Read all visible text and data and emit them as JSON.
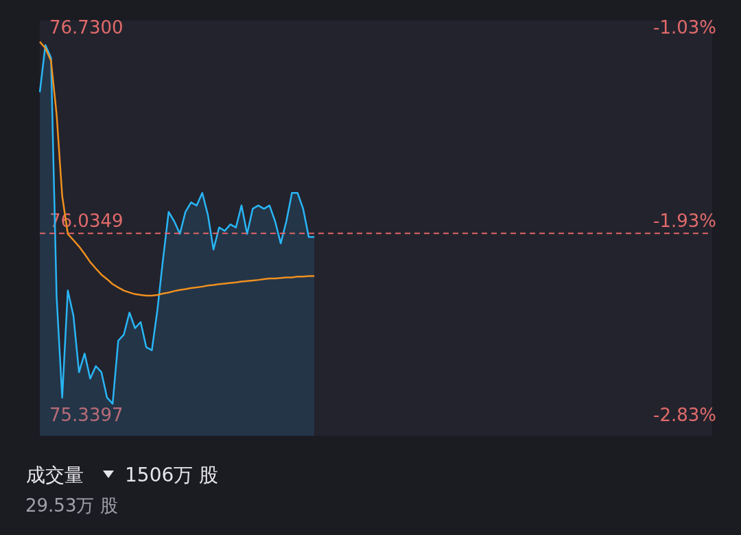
{
  "chart_data": {
    "type": "area",
    "categories": [
      null,
      null,
      null,
      null,
      null,
      null,
      null,
      null,
      null,
      null,
      null,
      null,
      null,
      null,
      null,
      null,
      null,
      null,
      null,
      null,
      null,
      null,
      null,
      null,
      null,
      null,
      null,
      null,
      null,
      null,
      null,
      null,
      null,
      null,
      null,
      null,
      null,
      null,
      null,
      null,
      null,
      null,
      null,
      null,
      null,
      null,
      null,
      null,
      null,
      null,
      null,
      null,
      null,
      null,
      null,
      null,
      null,
      null,
      null,
      null,
      null,
      null,
      null,
      null,
      null,
      null,
      null,
      null,
      null,
      null,
      null,
      null,
      null,
      null,
      null,
      null,
      null,
      null,
      null,
      null,
      null,
      null,
      null,
      null,
      null,
      null,
      null,
      null,
      null,
      null,
      null,
      null,
      null,
      null,
      null,
      null,
      null,
      null,
      null,
      null,
      null,
      null,
      null,
      null,
      null,
      null,
      null,
      null,
      null,
      null,
      null,
      null,
      null,
      null,
      null,
      null,
      null,
      null,
      null,
      null,
      null
    ],
    "series": [
      {
        "type": "area",
        "color": "#29b6f6",
        "values": [
          76.502,
          76.671,
          76.626,
          75.769,
          75.407,
          75.791,
          75.701,
          75.498,
          75.565,
          75.475,
          75.52,
          75.498,
          75.407,
          75.385,
          75.611,
          75.633,
          75.712,
          75.656,
          75.678,
          75.588,
          75.577,
          75.723,
          75.904,
          76.073,
          76.039,
          75.994,
          76.073,
          76.107,
          76.096,
          76.141,
          76.062,
          75.938,
          76.017,
          76.005,
          76.028,
          76.017,
          76.096,
          75.994,
          76.084,
          76.096,
          76.084,
          76.096,
          76.039,
          75.96,
          76.039,
          76.141,
          76.141,
          76.084,
          75.983,
          75.983,
          null,
          null,
          null,
          null,
          null,
          null,
          null,
          null,
          null,
          null,
          null,
          null,
          null,
          null,
          null,
          null,
          null,
          null,
          null,
          null,
          null,
          null,
          null,
          null,
          null,
          null,
          null,
          null,
          null,
          null,
          null,
          null,
          null,
          null,
          null,
          null,
          null,
          null,
          null,
          null,
          null,
          null,
          null,
          null,
          null,
          null,
          null,
          null,
          null,
          null,
          null,
          null,
          null,
          null,
          null,
          null,
          null,
          null,
          null,
          null,
          null,
          null,
          null,
          null,
          null,
          null,
          null,
          null,
          null,
          null,
          null
        ]
      },
      {
        "type": "line",
        "color": "#f0901e",
        "values": [
          76.683,
          76.66,
          76.615,
          76.423,
          76.13,
          75.994,
          75.972,
          75.949,
          75.922,
          75.893,
          75.87,
          75.848,
          75.832,
          75.814,
          75.802,
          75.791,
          75.784,
          75.778,
          75.775,
          75.773,
          75.773,
          75.775,
          75.78,
          75.784,
          75.789,
          75.793,
          75.796,
          75.8,
          75.802,
          75.805,
          75.809,
          75.811,
          75.814,
          75.816,
          75.818,
          75.82,
          75.823,
          75.825,
          75.827,
          75.829,
          75.832,
          75.834,
          75.834,
          75.836,
          75.838,
          75.838,
          75.841,
          75.841,
          75.843,
          75.843,
          null,
          null,
          null,
          null,
          null,
          null,
          null,
          null,
          null,
          null,
          null,
          null,
          null,
          null,
          null,
          null,
          null,
          null,
          null,
          null,
          null,
          null,
          null,
          null,
          null,
          null,
          null,
          null,
          null,
          null,
          null,
          null,
          null,
          null,
          null,
          null,
          null,
          null,
          null,
          null,
          null,
          null,
          null,
          null,
          null,
          null,
          null,
          null,
          null,
          null,
          null,
          null,
          null,
          null,
          null,
          null,
          null,
          null,
          null,
          null,
          null,
          null,
          null,
          null,
          null,
          null,
          null,
          null,
          null,
          null,
          null
        ]
      }
    ],
    "ylim": [
      75.27,
      76.76
    ],
    "yticks": [
      {
        "value": 76.73,
        "label": "76.7300"
      },
      {
        "value": 76.0349,
        "label": "76.0349"
      },
      {
        "value": 75.3397,
        "label": "75.3397"
      }
    ],
    "y2lim": [
      -2.92,
      -0.99
    ],
    "y2ticks": [
      {
        "value": -1.03,
        "label": "-1.03%"
      },
      {
        "value": -1.93,
        "label": "-1.93%"
      },
      {
        "value": -2.83,
        "label": "-2.83%"
      }
    ],
    "ref_lines": [
      {
        "axis": "y",
        "value": 75.996,
        "color": "#e06666",
        "line_style": "dashed"
      }
    ],
    "annotations": [
      "成交量",
      "1506万 股",
      "29.53万 股"
    ]
  }
}
